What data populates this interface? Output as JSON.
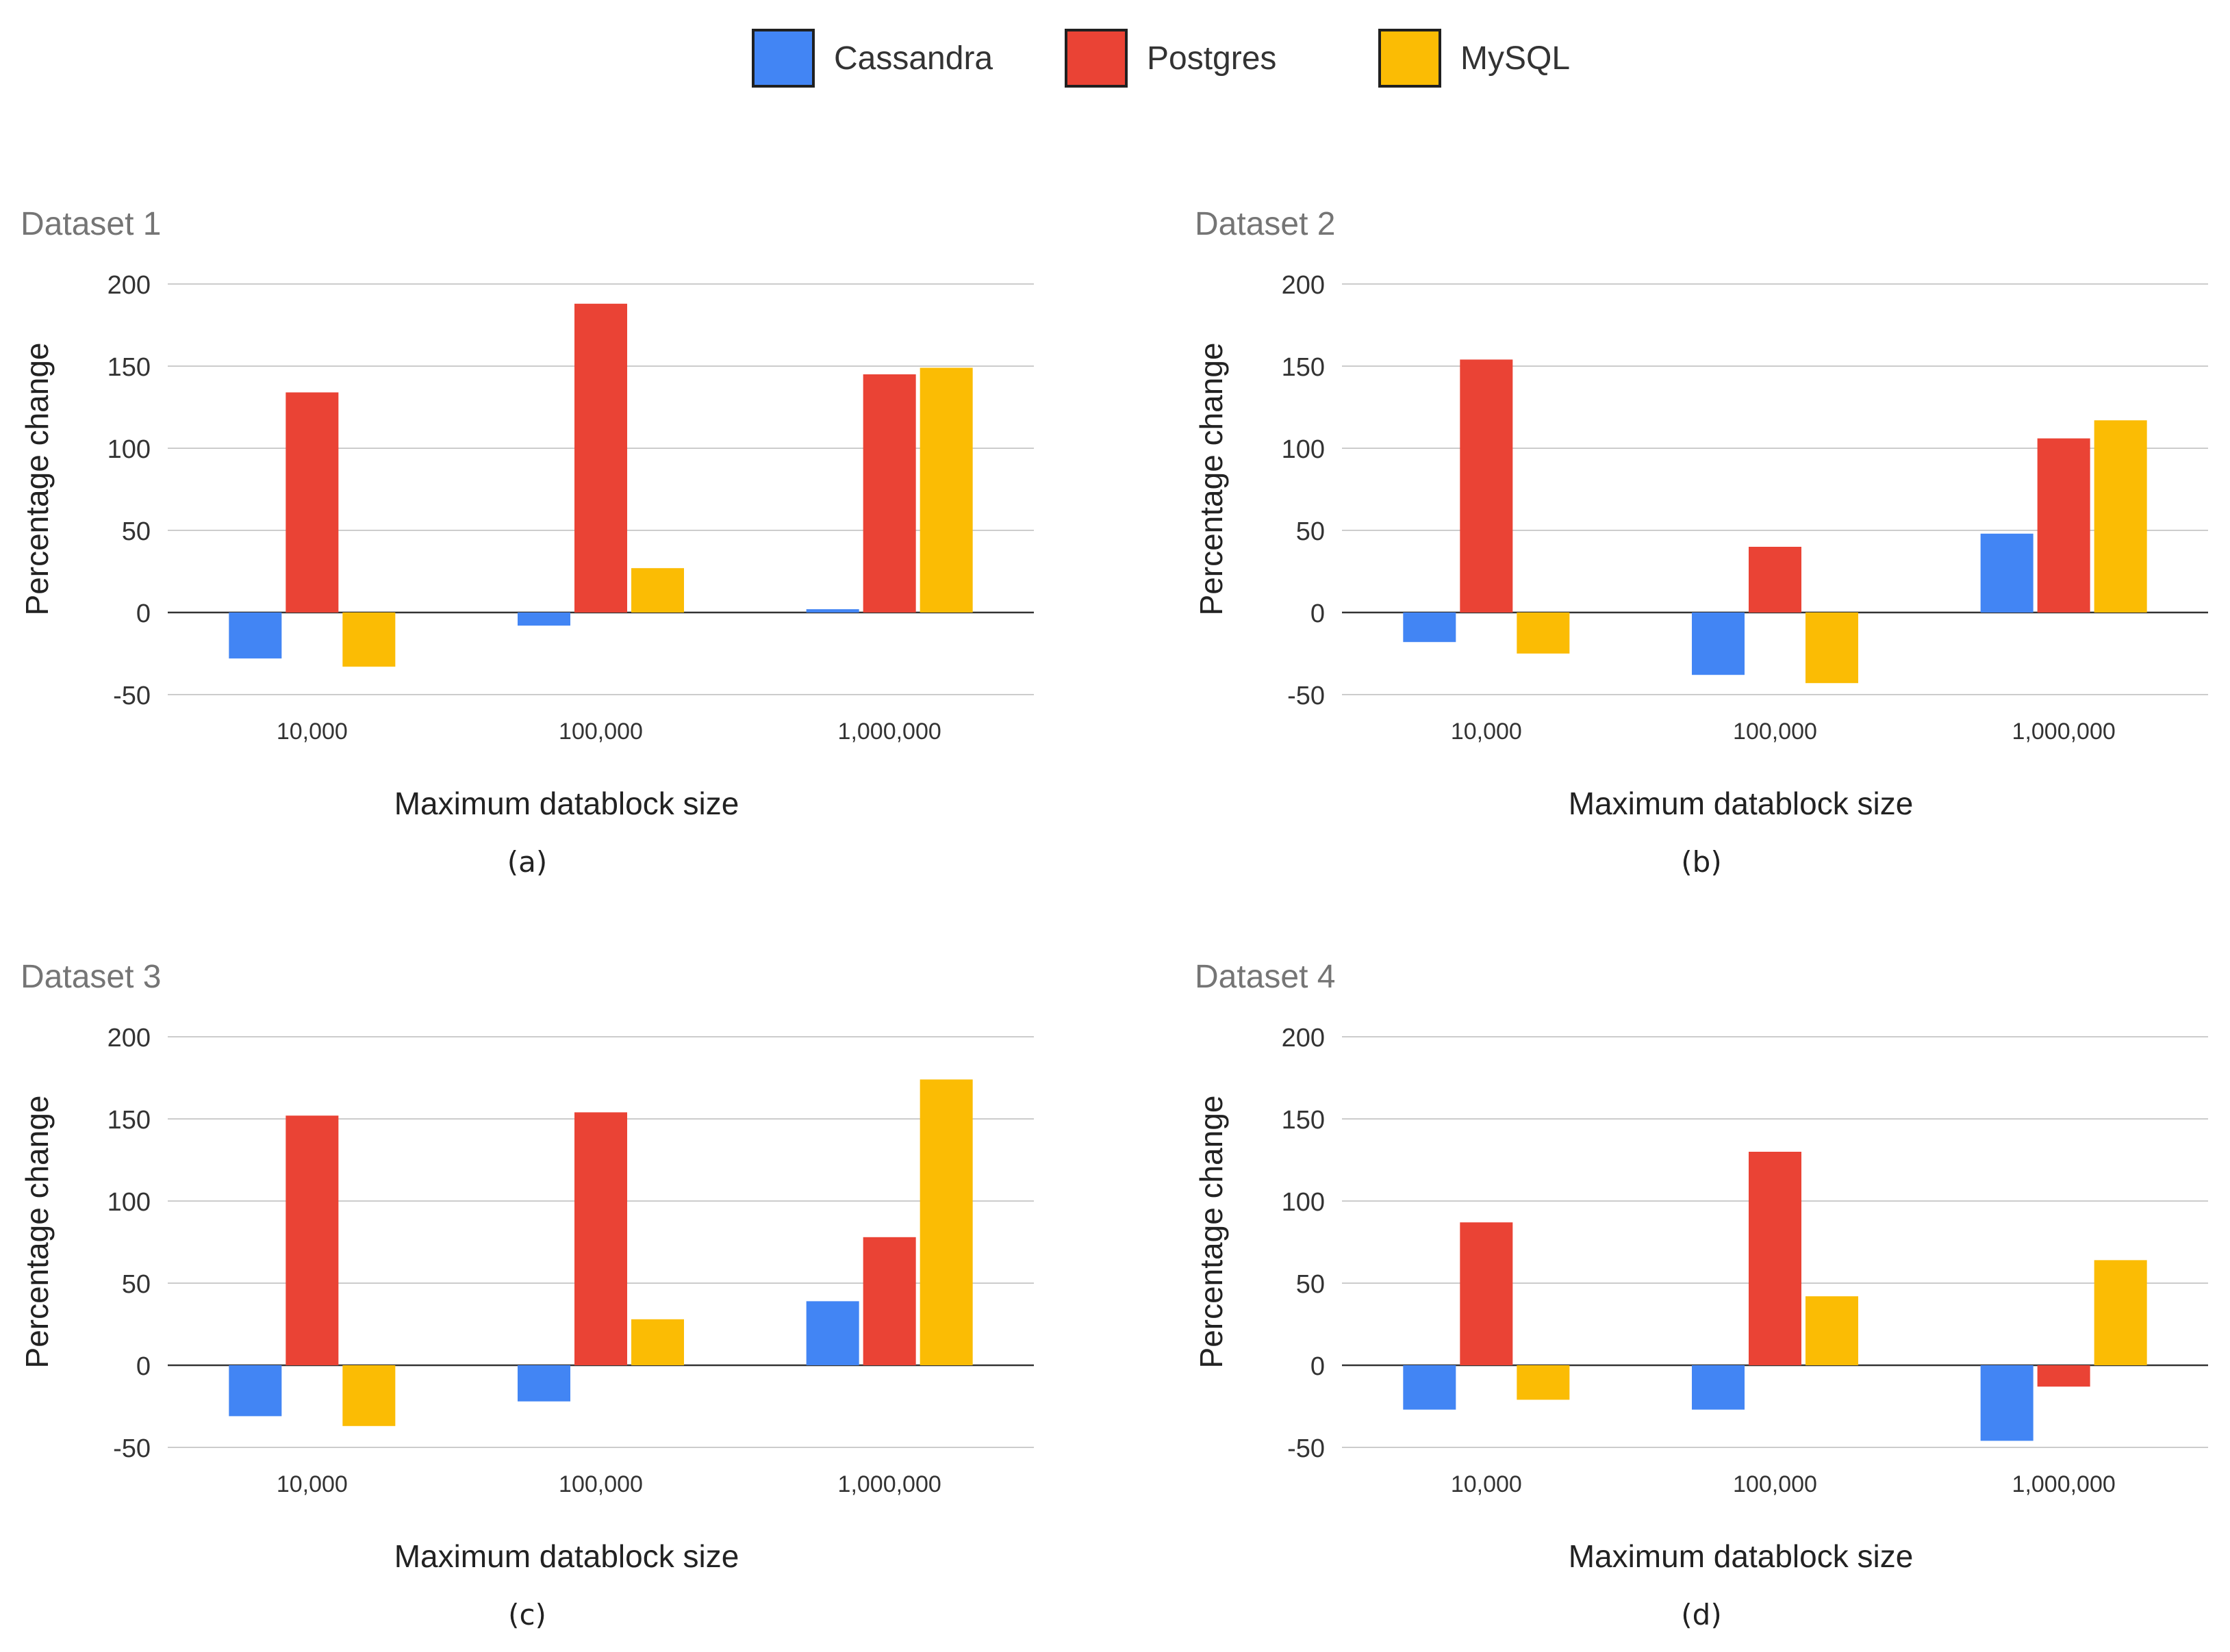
{
  "legend": [
    {
      "name": "Cassandra",
      "color": "#4285F4"
    },
    {
      "name": "Postgres",
      "color": "#EA4335"
    },
    {
      "name": "MySQL",
      "color": "#FBBC04"
    }
  ],
  "chart_data": [
    {
      "type": "bar",
      "title": "Dataset 1",
      "caption": "(a)",
      "xlabel": "Maximum datablock size",
      "ylabel": "Percentage change",
      "ylim": [
        -50,
        200
      ],
      "yticks": [
        "200",
        "150",
        "100",
        "50",
        "0",
        "-50"
      ],
      "categories": [
        "10,000",
        "100,000",
        "1,000,000"
      ],
      "series": [
        {
          "name": "Cassandra",
          "values": [
            -28,
            -8,
            2
          ]
        },
        {
          "name": "Postgres",
          "values": [
            134,
            188,
            145
          ]
        },
        {
          "name": "MySQL",
          "values": [
            -33,
            27,
            149
          ]
        }
      ]
    },
    {
      "type": "bar",
      "title": "Dataset 2",
      "caption": "(b)",
      "xlabel": "Maximum datablock size",
      "ylabel": "Percentage change",
      "ylim": [
        -50,
        200
      ],
      "yticks": [
        "200",
        "150",
        "100",
        "50",
        "0",
        "-50"
      ],
      "categories": [
        "10,000",
        "100,000",
        "1,000,000"
      ],
      "series": [
        {
          "name": "Cassandra",
          "values": [
            -18,
            -38,
            48
          ]
        },
        {
          "name": "Postgres",
          "values": [
            154,
            40,
            106
          ]
        },
        {
          "name": "MySQL",
          "values": [
            -25,
            -43,
            117
          ]
        }
      ]
    },
    {
      "type": "bar",
      "title": "Dataset 3",
      "caption": "(c)",
      "xlabel": "Maximum datablock size",
      "ylabel": "Percentage change",
      "ylim": [
        -50,
        200
      ],
      "yticks": [
        "200",
        "150",
        "100",
        "50",
        "0",
        "-50"
      ],
      "categories": [
        "10,000",
        "100,000",
        "1,000,000"
      ],
      "series": [
        {
          "name": "Cassandra",
          "values": [
            -31,
            -22,
            39
          ]
        },
        {
          "name": "Postgres",
          "values": [
            152,
            154,
            78
          ]
        },
        {
          "name": "MySQL",
          "values": [
            -37,
            28,
            174
          ]
        }
      ]
    },
    {
      "type": "bar",
      "title": "Dataset 4",
      "caption": "(d)",
      "xlabel": "Maximum datablock size",
      "ylabel": "Percentage change",
      "ylim": [
        -50,
        200
      ],
      "yticks": [
        "200",
        "150",
        "100",
        "50",
        "0",
        "-50"
      ],
      "categories": [
        "10,000",
        "100,000",
        "1,000,000"
      ],
      "series": [
        {
          "name": "Cassandra",
          "values": [
            -27,
            -27,
            -46
          ]
        },
        {
          "name": "Postgres",
          "values": [
            87,
            130,
            -13
          ]
        },
        {
          "name": "MySQL",
          "values": [
            -21,
            42,
            64
          ]
        }
      ]
    }
  ]
}
